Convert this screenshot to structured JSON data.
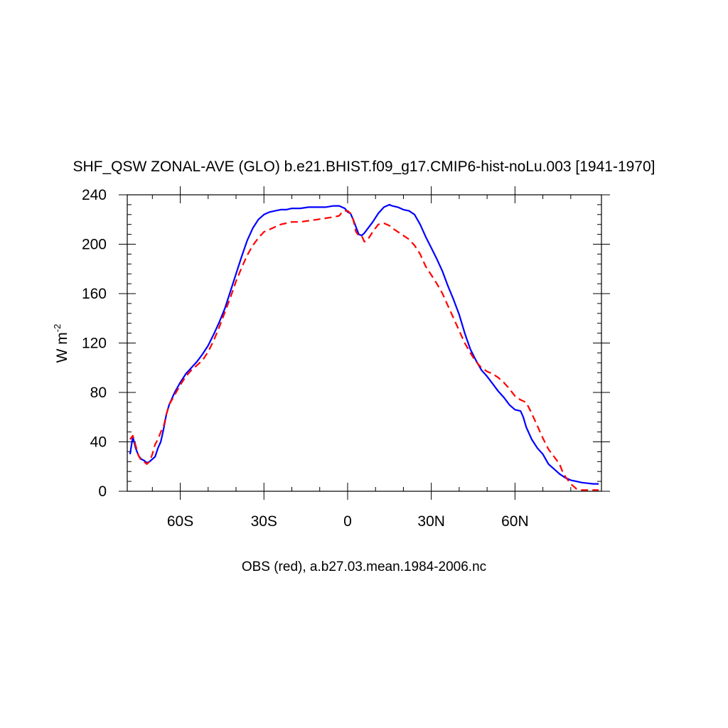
{
  "chart_data": {
    "type": "line",
    "title": "SHF_QSW ZONAL-AVE (GLO) b.e21.BHIST.f09_g17.CMIP6-hist-noLu.003 [1941-1970]",
    "ylabel_main": "W m",
    "ylabel_exp": "-2",
    "xlabel": "OBS (red), a.b27.03.mean.1984-2006.nc",
    "xlim": [
      -79,
      91
    ],
    "ylim": [
      0,
      240
    ],
    "x_ticks": [
      {
        "value": -60,
        "label": "60S"
      },
      {
        "value": -30,
        "label": "30S"
      },
      {
        "value": 0,
        "label": "0"
      },
      {
        "value": 30,
        "label": "30N"
      },
      {
        "value": 60,
        "label": "60N"
      }
    ],
    "y_ticks": [
      {
        "value": 0,
        "label": "0"
      },
      {
        "value": 40,
        "label": "40"
      },
      {
        "value": 80,
        "label": "80"
      },
      {
        "value": 120,
        "label": "120"
      },
      {
        "value": 160,
        "label": "160"
      },
      {
        "value": 200,
        "label": "200"
      },
      {
        "value": 240,
        "label": "240"
      }
    ],
    "series": [
      {
        "color": "#0000ff",
        "dash": "solid",
        "x": [
          -78,
          -77,
          -76,
          -75,
          -74,
          -73,
          -72,
          -71,
          -70,
          -69,
          -68,
          -67,
          -66,
          -65,
          -64,
          -63,
          -62,
          -60,
          -58,
          -56,
          -54,
          -52,
          -50,
          -48,
          -46,
          -44,
          -42,
          -40,
          -38,
          -36,
          -34,
          -32,
          -30,
          -28,
          -26,
          -24,
          -22,
          -20,
          -17,
          -14,
          -11,
          -8,
          -5,
          -3,
          -2,
          -1,
          0,
          1,
          2,
          3,
          4,
          5,
          6,
          7,
          9,
          11,
          13,
          15,
          16,
          18,
          20,
          22,
          24,
          26,
          28,
          30,
          32,
          34,
          36,
          38,
          40,
          42,
          44,
          46,
          48,
          50,
          52,
          54,
          56,
          58,
          60,
          62,
          63,
          64,
          66,
          68,
          70,
          72,
          74,
          76,
          78,
          80,
          82,
          84,
          86,
          88,
          90
        ],
        "y": [
          30,
          44,
          35,
          29,
          26,
          25,
          23,
          24,
          26,
          28,
          35,
          40,
          50,
          62,
          70,
          75,
          80,
          88,
          95,
          100,
          105,
          111,
          118,
          127,
          137,
          148,
          162,
          176,
          190,
          203,
          213,
          220,
          224,
          226,
          227,
          228,
          228,
          229,
          229,
          230,
          230,
          230,
          231,
          231,
          230,
          229,
          226,
          225,
          220,
          214,
          208,
          207,
          209,
          212,
          218,
          225,
          230,
          232,
          231,
          230,
          228,
          227,
          224,
          216,
          206,
          197,
          188,
          178,
          166,
          155,
          143,
          128,
          115,
          106,
          98,
          93,
          87,
          81,
          76,
          70,
          66,
          65,
          60,
          52,
          42,
          35,
          30,
          22,
          18,
          14,
          11,
          9,
          8,
          7,
          6.5,
          6,
          6
        ]
      },
      {
        "color": "#ff0000",
        "dash": "dashed",
        "x": [
          -78,
          -77,
          -76,
          -75,
          -74,
          -73,
          -72,
          -71,
          -70,
          -69,
          -68,
          -67,
          -66,
          -65,
          -64,
          -63,
          -62,
          -60,
          -58,
          -56,
          -54,
          -52,
          -50,
          -48,
          -46,
          -44,
          -42,
          -40,
          -38,
          -36,
          -34,
          -32,
          -30,
          -28,
          -26,
          -24,
          -22,
          -20,
          -17,
          -14,
          -11,
          -8,
          -5,
          -3,
          -2,
          -1,
          0,
          1,
          2,
          3,
          4,
          5,
          6,
          7,
          9,
          11,
          13,
          15,
          16,
          18,
          20,
          22,
          24,
          26,
          28,
          30,
          32,
          34,
          36,
          38,
          40,
          42,
          44,
          46,
          48,
          50,
          52,
          54,
          56,
          58,
          60,
          62,
          63,
          64,
          66,
          68,
          70,
          72,
          74,
          76,
          77,
          78,
          80,
          82,
          84,
          86,
          88,
          90
        ],
        "y": [
          42,
          45,
          37,
          29,
          25,
          24,
          22,
          24,
          30,
          38,
          42,
          48,
          52,
          62,
          70,
          74,
          78,
          86,
          93,
          98,
          102,
          106,
          113,
          122,
          133,
          145,
          157,
          170,
          181,
          191,
          199,
          205,
          210,
          212,
          214,
          216,
          217,
          218,
          218,
          219,
          220,
          221,
          222,
          223,
          226,
          227,
          227,
          225,
          220,
          210,
          207,
          207,
          202,
          203,
          210,
          216,
          217,
          215,
          213,
          210,
          207,
          204,
          199,
          192,
          182,
          175,
          168,
          160,
          150,
          140,
          130,
          120,
          112,
          105,
          100,
          97,
          95,
          92,
          88,
          83,
          77,
          74,
          73,
          72,
          63,
          53,
          43,
          34,
          28,
          22,
          16,
          12,
          6,
          2,
          1,
          1,
          1,
          1
        ]
      }
    ]
  }
}
